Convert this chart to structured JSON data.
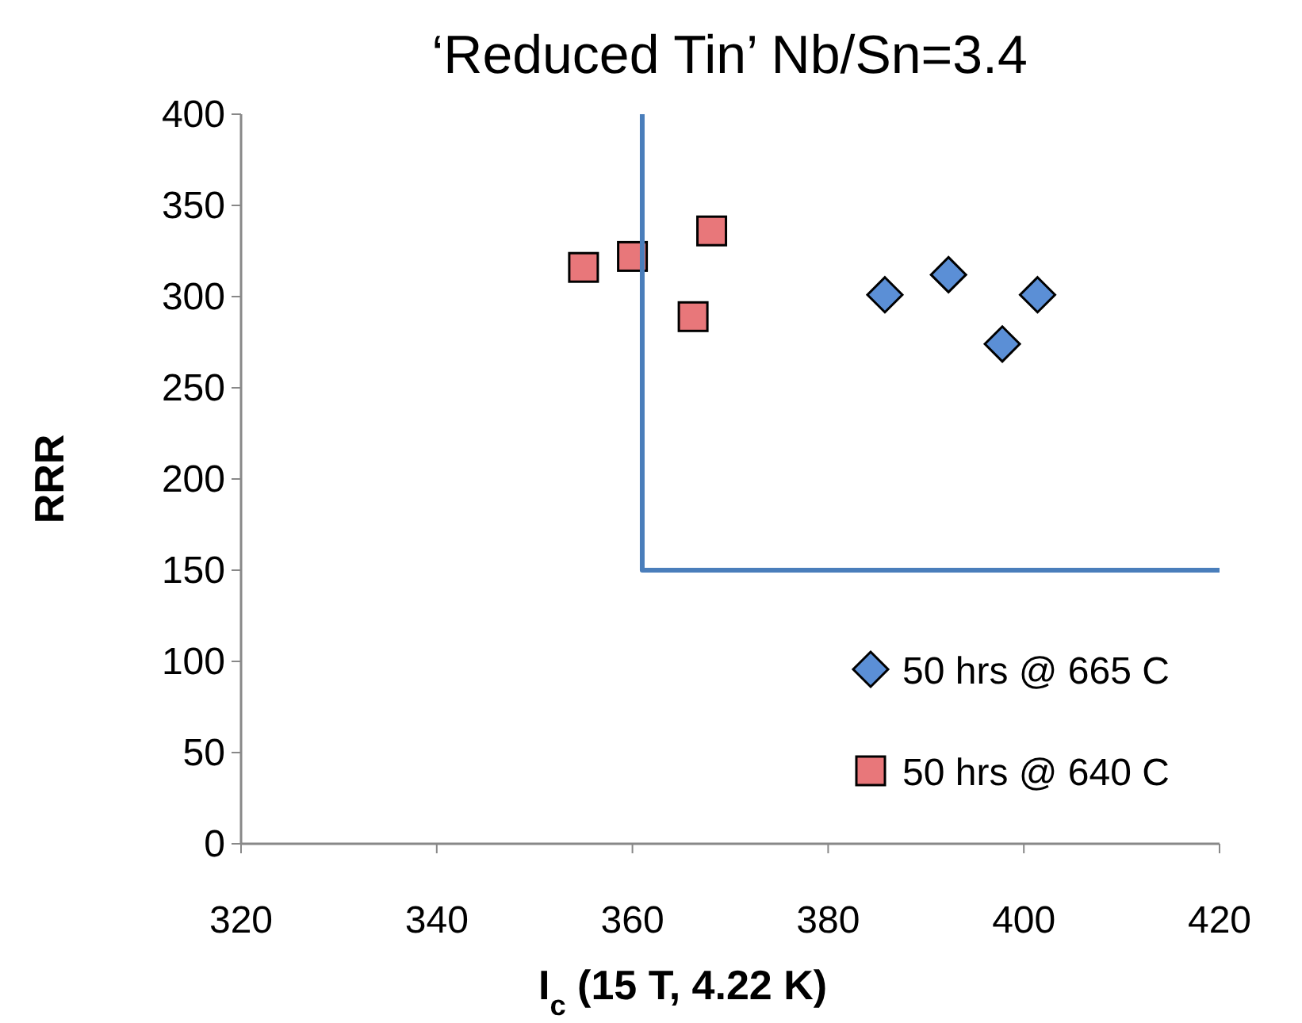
{
  "chart_data": {
    "type": "scatter",
    "title": "‘Reduced Tin’ Nb/Sn=3.4",
    "xlabel": "I$_{c}$ (15 T, 4.22 K)",
    "ylabel": "RRR",
    "xlim": [
      320,
      420
    ],
    "ylim": [
      0,
      400
    ],
    "xticks": [
      320,
      340,
      360,
      380,
      400,
      420
    ],
    "yticks": [
      0,
      50,
      100,
      150,
      200,
      250,
      300,
      350,
      400
    ],
    "grid": false,
    "legend": "bottom right",
    "series": [
      {
        "name": "50 hrs @ 665 C",
        "color": "#5b8fd6",
        "marker": "diamond",
        "x": [
          385.8,
          392.3,
          397.8,
          401.4
        ],
        "values": [
          301,
          312,
          274,
          301
        ]
      },
      {
        "name": "50 hrs @ 640 C",
        "color": "#e8777a",
        "marker": "square",
        "x": [
          355,
          360,
          368.1,
          366.2
        ],
        "values": [
          316,
          322,
          336,
          289
        ]
      },
      {
        "type": "line",
        "color": "#4a7ebb",
        "marker": "none",
        "x": [
          361,
          361,
          420
        ],
        "values": [
          400,
          150,
          150
        ]
      }
    ]
  }
}
